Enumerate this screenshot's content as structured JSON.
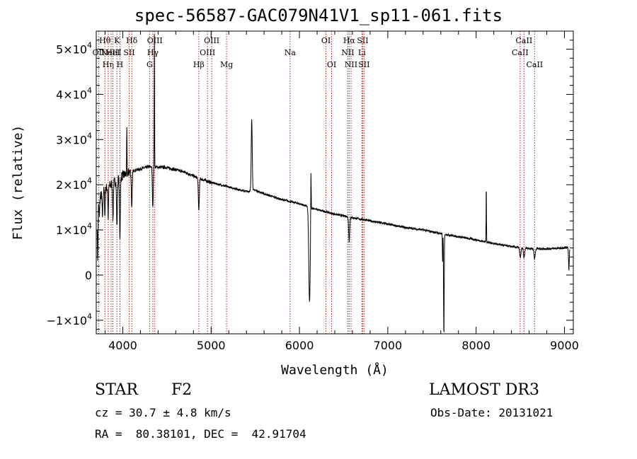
{
  "chart_data": {
    "type": "line",
    "title": "spec-56587-GAC079N41V1_sp11-061.fits",
    "xlabel": "Wavelength (Å)",
    "ylabel": "Flux (relative)",
    "xlim": [
      3700,
      9100
    ],
    "ylim": [
      -13000,
      54000
    ],
    "x_ticks": [
      4000,
      5000,
      6000,
      7000,
      8000,
      9000
    ],
    "x_tick_labels": [
      "4000",
      "5000",
      "6000",
      "7000",
      "8000",
      "9000"
    ],
    "y_ticks": [
      {
        "value": -10000,
        "mant": "−1×10",
        "exp": "4"
      },
      {
        "value": 0,
        "mant": "0",
        "exp": ""
      },
      {
        "value": 10000,
        "mant": "1×10",
        "exp": "4"
      },
      {
        "value": 20000,
        "mant": "2×10",
        "exp": "4"
      },
      {
        "value": 30000,
        "mant": "3×10",
        "exp": "4"
      },
      {
        "value": 40000,
        "mant": "4×10",
        "exp": "4"
      },
      {
        "value": 50000,
        "mant": "5×10",
        "exp": "4"
      }
    ],
    "lines": [
      {
        "wl": 3727,
        "label": "OII",
        "row": 1
      },
      {
        "wl": 3798,
        "label": "Hθ",
        "row": 0
      },
      {
        "wl": 3835,
        "label": "Hη",
        "row": 2
      },
      {
        "wl": 3869,
        "label": "NeIII",
        "row": 1
      },
      {
        "wl": 3889,
        "label": "HeI",
        "row": 1
      },
      {
        "wl": 3934,
        "label": "K",
        "row": 0
      },
      {
        "wl": 3968,
        "label": "H",
        "row": 2
      },
      {
        "wl": 4072,
        "label": "SII",
        "row": 1
      },
      {
        "wl": 4102,
        "label": "Hδ",
        "row": 0
      },
      {
        "wl": 4304,
        "label": "G",
        "row": 2
      },
      {
        "wl": 4341,
        "label": "Hγ",
        "row": 1
      },
      {
        "wl": 4363,
        "label": "OIII",
        "row": 0
      },
      {
        "wl": 4861,
        "label": "Hβ",
        "row": 2
      },
      {
        "wl": 4959,
        "label": "OIII",
        "row": 1
      },
      {
        "wl": 5007,
        "label": "OIII",
        "row": 0
      },
      {
        "wl": 5175,
        "label": "Mg",
        "row": 2
      },
      {
        "wl": 5894,
        "label": "Na",
        "row": 1
      },
      {
        "wl": 6300,
        "label": "OI",
        "row": 0
      },
      {
        "wl": 6364,
        "label": "OI",
        "row": 2
      },
      {
        "wl": 6548,
        "label": "NII",
        "row": 1
      },
      {
        "wl": 6563,
        "label": "Hα",
        "row": 0
      },
      {
        "wl": 6584,
        "label": "NII",
        "row": 2
      },
      {
        "wl": 6707,
        "label": "Li",
        "row": 1
      },
      {
        "wl": 6716,
        "label": "SII",
        "row": 0
      },
      {
        "wl": 6731,
        "label": "SII",
        "row": 2
      },
      {
        "wl": 8498,
        "label": "CaII",
        "row": 1
      },
      {
        "wl": 8542,
        "label": "CaII",
        "row": 0
      },
      {
        "wl": 8662,
        "label": "CaII",
        "row": 2
      }
    ],
    "continuum": [
      [
        3700,
        15000
      ],
      [
        3750,
        17500
      ],
      [
        3800,
        19000
      ],
      [
        3900,
        20500
      ],
      [
        4000,
        22000
      ],
      [
        4100,
        23000
      ],
      [
        4300,
        24000
      ],
      [
        4500,
        23800
      ],
      [
        4700,
        22800
      ],
      [
        4850,
        21500
      ],
      [
        5000,
        20500
      ],
      [
        5200,
        19500
      ],
      [
        5400,
        18500
      ],
      [
        5500,
        18800
      ],
      [
        5600,
        18000
      ],
      [
        5800,
        16700
      ],
      [
        6000,
        15800
      ],
      [
        6200,
        14500
      ],
      [
        6400,
        13500
      ],
      [
        6600,
        12700
      ],
      [
        6800,
        12000
      ],
      [
        7000,
        11300
      ],
      [
        7200,
        10500
      ],
      [
        7400,
        10000
      ],
      [
        7600,
        9200
      ],
      [
        7800,
        8500
      ],
      [
        8000,
        7800
      ],
      [
        8200,
        7000
      ],
      [
        8400,
        6300
      ],
      [
        8600,
        5900
      ],
      [
        8800,
        5800
      ],
      [
        9000,
        6000
      ],
      [
        9050,
        6200
      ]
    ],
    "features": [
      {
        "wl": 3716,
        "depth": 12000,
        "w": 6
      },
      {
        "wl": 3735,
        "depth": 3500,
        "w": 6
      },
      {
        "wl": 3770,
        "depth": 5000,
        "w": 6
      },
      {
        "wl": 3798,
        "depth": 6000,
        "w": 5
      },
      {
        "wl": 3835,
        "depth": 7000,
        "w": 5
      },
      {
        "wl": 3889,
        "depth": 8000,
        "w": 6
      },
      {
        "wl": 3934,
        "depth": 10000,
        "w": 7
      },
      {
        "wl": 3968,
        "depth": 13000,
        "w": 7
      },
      {
        "wl": 4046,
        "depth": -10000,
        "w": 3
      },
      {
        "wl": 4102,
        "depth": 8000,
        "w": 7
      },
      {
        "wl": 4340,
        "depth": 9000,
        "w": 7
      },
      {
        "wl": 4358,
        "depth": -29000,
        "w": 3
      },
      {
        "wl": 4861,
        "depth": 7000,
        "w": 8
      },
      {
        "wl": 5460,
        "depth": -16000,
        "w": 8
      },
      {
        "wl": 6114,
        "depth": 21000,
        "w": 12
      },
      {
        "wl": 6130,
        "depth": -11000,
        "w": 4
      },
      {
        "wl": 6563,
        "depth": 5500,
        "w": 8
      },
      {
        "wl": 7620,
        "depth": 6000,
        "w": 3
      },
      {
        "wl": 7635,
        "depth": 22500,
        "w": 5
      },
      {
        "wl": 8115,
        "depth": -12500,
        "w": 3
      },
      {
        "wl": 8500,
        "depth": 2200,
        "w": 10
      },
      {
        "wl": 8542,
        "depth": 2200,
        "w": 10
      },
      {
        "wl": 8662,
        "depth": 2200,
        "w": 10
      },
      {
        "wl": 9050,
        "depth": 5000,
        "w": 6
      }
    ]
  },
  "footer": {
    "class_label": "STAR",
    "subclass": "F2",
    "survey": "LAMOST DR3",
    "cz": "cz = 30.7 ± 4.8 km/s",
    "obs_date": "Obs-Date: 20131021",
    "radec": "RA =  80.38101, DEC =  42.91704"
  }
}
